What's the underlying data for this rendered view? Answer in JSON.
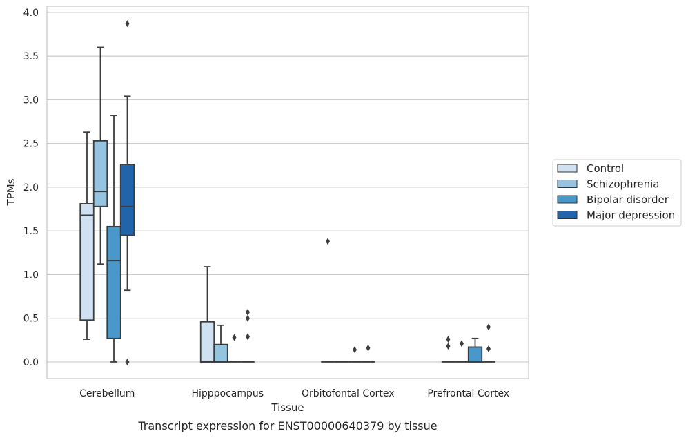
{
  "chart_data": {
    "type": "box",
    "xlabel": "Tissue",
    "ylabel": "TPMs",
    "caption": "Transcript expression for ENST00000640379 by tissue",
    "ylim": [
      -0.19,
      4.07
    ],
    "yticks": [
      "0.0",
      "0.5",
      "1.0",
      "1.5",
      "2.0",
      "2.5",
      "3.0",
      "3.5",
      "4.0"
    ],
    "grid": "horizontal",
    "legend_position": "right",
    "categories": [
      "Cerebellum",
      "Hipppocampus",
      "Orbitofontal Cortex",
      "Prefrontal Cortex"
    ],
    "series": [
      {
        "name": "Control",
        "color": "#d0e1f2",
        "boxes": [
          {
            "whislo": 0.26,
            "q1": 0.48,
            "med": 1.68,
            "q3": 1.81,
            "whishi": 2.63,
            "fliers": []
          },
          {
            "whislo": 0.0,
            "q1": 0.0,
            "med": 0.0,
            "q3": 0.46,
            "whishi": 1.09,
            "fliers": []
          },
          {
            "whislo": 0.0,
            "q1": 0.0,
            "med": 0.0,
            "q3": 0.0,
            "whishi": 0.0,
            "fliers": [
              1.38
            ]
          },
          {
            "whislo": 0.0,
            "q1": 0.0,
            "med": 0.0,
            "q3": 0.0,
            "whishi": 0.0,
            "fliers": [
              0.18,
              0.26
            ]
          }
        ]
      },
      {
        "name": "Schizophrenia",
        "color": "#94c4df",
        "boxes": [
          {
            "whislo": 1.12,
            "q1": 1.78,
            "med": 1.95,
            "q3": 2.53,
            "whishi": 3.6,
            "fliers": []
          },
          {
            "whislo": 0.0,
            "q1": 0.0,
            "med": 0.0,
            "q3": 0.2,
            "whishi": 0.42,
            "fliers": []
          },
          {
            "whislo": 0.0,
            "q1": 0.0,
            "med": 0.0,
            "q3": 0.0,
            "whishi": 0.0,
            "fliers": []
          },
          {
            "whislo": 0.0,
            "q1": 0.0,
            "med": 0.0,
            "q3": 0.0,
            "whishi": 0.0,
            "fliers": [
              0.21
            ]
          }
        ]
      },
      {
        "name": "Bipolar disorder",
        "color": "#4a98c9",
        "boxes": [
          {
            "whislo": 0.0,
            "q1": 0.27,
            "med": 1.16,
            "q3": 1.55,
            "whishi": 2.82,
            "fliers": []
          },
          {
            "whislo": 0.0,
            "q1": 0.0,
            "med": 0.0,
            "q3": 0.0,
            "whishi": 0.0,
            "fliers": [
              0.28
            ]
          },
          {
            "whislo": 0.0,
            "q1": 0.0,
            "med": 0.0,
            "q3": 0.0,
            "whishi": 0.0,
            "fliers": [
              0.14
            ]
          },
          {
            "whislo": 0.0,
            "q1": 0.0,
            "med": 0.0,
            "q3": 0.17,
            "whishi": 0.27,
            "fliers": []
          }
        ]
      },
      {
        "name": "Major depression",
        "color": "#2264aa",
        "boxes": [
          {
            "whislo": 0.82,
            "q1": 1.45,
            "med": 1.78,
            "q3": 2.26,
            "whishi": 3.04,
            "fliers": [
              0.0,
              3.87
            ]
          },
          {
            "whislo": 0.0,
            "q1": 0.0,
            "med": 0.0,
            "q3": 0.0,
            "whishi": 0.0,
            "fliers": [
              0.29,
              0.5,
              0.57
            ]
          },
          {
            "whislo": 0.0,
            "q1": 0.0,
            "med": 0.0,
            "q3": 0.0,
            "whishi": 0.0,
            "fliers": [
              0.16
            ]
          },
          {
            "whislo": 0.0,
            "q1": 0.0,
            "med": 0.0,
            "q3": 0.0,
            "whishi": 0.0,
            "fliers": [
              0.15,
              0.4
            ]
          }
        ]
      }
    ]
  }
}
